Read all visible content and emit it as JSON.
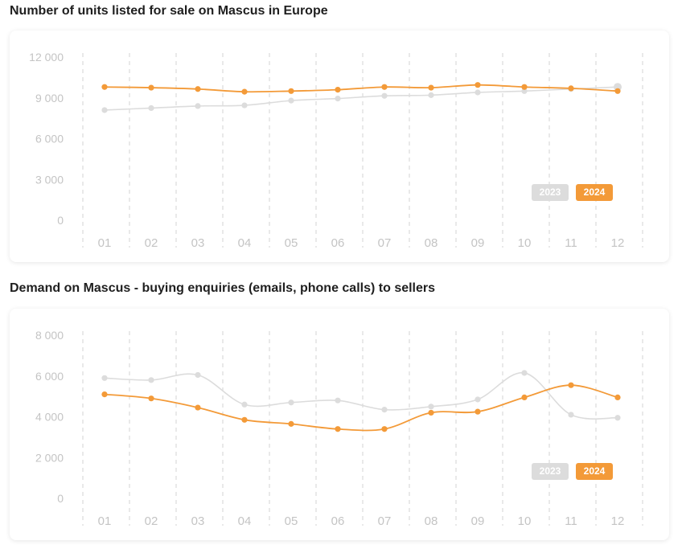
{
  "charts": [
    {
      "title": "Number of units listed for sale on Mascus in Europe",
      "legend": [
        "2023",
        "2024"
      ]
    },
    {
      "title": "Demand on Mascus - buying enquiries (emails, phone calls) to sellers",
      "legend": [
        "2023",
        "2024"
      ]
    }
  ],
  "colors": {
    "series_2023": "#dcdcdc",
    "series_2024": "#f39a38",
    "axis_text": "#c4c4c4",
    "grid": "#dddddd"
  },
  "chart_data": [
    {
      "type": "line",
      "title": "Number of units listed for sale on Mascus in Europe",
      "categories": [
        "01",
        "02",
        "03",
        "04",
        "05",
        "06",
        "07",
        "08",
        "09",
        "10",
        "11",
        "12"
      ],
      "y_ticks": [
        "0",
        "3 000",
        "6 000",
        "9 000",
        "12 000"
      ],
      "ylim": [
        0,
        12000
      ],
      "grid": "vertical-dashed",
      "legend_placement": "bottom-right",
      "series": [
        {
          "name": "2023",
          "color": "#dcdcdc",
          "values": [
            8100,
            8250,
            8400,
            8450,
            8800,
            8950,
            9150,
            9200,
            9400,
            9500,
            9650,
            9800
          ]
        },
        {
          "name": "2024",
          "color": "#f39a38",
          "values": [
            9800,
            9750,
            9650,
            9450,
            9500,
            9600,
            9800,
            9750,
            9950,
            9800,
            9700,
            9500
          ]
        }
      ]
    },
    {
      "type": "line",
      "title": "Demand on Mascus - buying enquiries (emails, phone calls) to sellers",
      "categories": [
        "01",
        "02",
        "03",
        "04",
        "05",
        "06",
        "07",
        "08",
        "09",
        "10",
        "11",
        "12"
      ],
      "y_ticks": [
        "0",
        "2 000",
        "4 000",
        "6 000",
        "8 000"
      ],
      "ylim": [
        0,
        8000
      ],
      "grid": "vertical-dashed",
      "legend_placement": "bottom-right",
      "series": [
        {
          "name": "2023",
          "color": "#dcdcdc",
          "values": [
            5900,
            5800,
            6050,
            4600,
            4700,
            4800,
            4350,
            4500,
            4850,
            6150,
            4100,
            3950
          ]
        },
        {
          "name": "2024",
          "color": "#f39a38",
          "values": [
            5100,
            4900,
            4450,
            3850,
            3650,
            3400,
            3400,
            4200,
            4250,
            4950,
            5550,
            4950
          ]
        }
      ]
    }
  ]
}
